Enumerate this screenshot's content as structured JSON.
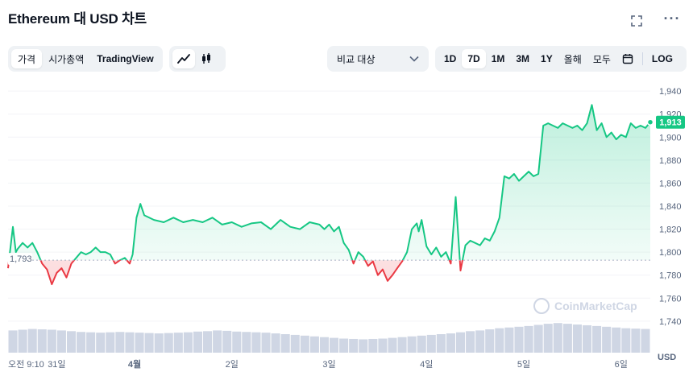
{
  "header": {
    "title": "Ethereum 대 USD 차트"
  },
  "tabs": {
    "type": [
      {
        "label": "가격",
        "active": true
      },
      {
        "label": "시가총액",
        "active": false
      },
      {
        "label": "TradingView",
        "active": false
      }
    ],
    "chart_style": [
      "line-chart-icon",
      "candlestick-icon"
    ],
    "compare_label": "비교 대상",
    "ranges": [
      {
        "label": "1D",
        "active": false
      },
      {
        "label": "7D",
        "active": true
      },
      {
        "label": "1M",
        "active": false
      },
      {
        "label": "3M",
        "active": false
      },
      {
        "label": "1Y",
        "active": false
      },
      {
        "label": "올해",
        "active": false
      },
      {
        "label": "모두",
        "active": false
      }
    ],
    "log_label": "LOG"
  },
  "colors": {
    "up": "#16c784",
    "down": "#ea3943",
    "volume": "#cfd6e4",
    "badge": "#16c784"
  },
  "watermark": "CoinMarketCap",
  "chart_data": {
    "type": "line",
    "title": "",
    "ylabel": "USD",
    "ylim": [
      1735,
      1945
    ],
    "yticks": [
      1740,
      1760,
      1780,
      1800,
      1820,
      1840,
      1860,
      1880,
      1900,
      1920,
      1940
    ],
    "yticks_labels": [
      "1,740",
      "1,760",
      "1,780",
      "1,800",
      "1,820",
      "1,840",
      "1,860",
      "1,880",
      "1,900",
      "1,920",
      "1,940"
    ],
    "xticks": [
      {
        "t": 0.0,
        "label": "오전 9:10",
        "bold": false
      },
      {
        "t": 0.5,
        "label": "31일",
        "bold": false
      },
      {
        "t": 1.3,
        "label": "4월",
        "bold": true
      },
      {
        "t": 2.3,
        "label": "2일",
        "bold": false
      },
      {
        "t": 3.3,
        "label": "3일",
        "bold": false
      },
      {
        "t": 4.3,
        "label": "4일",
        "bold": false
      },
      {
        "t": 5.3,
        "label": "5일",
        "bold": false
      },
      {
        "t": 6.3,
        "label": "6일",
        "bold": false
      }
    ],
    "baseline": 1793,
    "baseline_label": "1,793",
    "current": 1913,
    "current_label": "1,913",
    "series": [
      {
        "x": [
          0.0,
          0.05,
          0.08,
          0.1,
          0.15,
          0.2,
          0.25,
          0.3,
          0.35,
          0.4,
          0.45,
          0.5,
          0.55,
          0.6,
          0.65,
          0.7,
          0.75,
          0.8,
          0.85,
          0.9,
          0.95,
          1.0,
          1.05,
          1.1,
          1.15,
          1.2,
          1.25,
          1.28,
          1.32,
          1.36,
          1.4,
          1.5,
          1.6,
          1.7,
          1.8,
          1.9,
          2.0,
          2.1,
          2.2,
          2.3,
          2.4,
          2.5,
          2.6,
          2.7,
          2.8,
          2.9,
          3.0,
          3.1,
          3.2,
          3.25,
          3.3,
          3.35,
          3.4,
          3.45,
          3.5,
          3.55,
          3.6,
          3.65,
          3.7,
          3.75,
          3.8,
          3.85,
          3.9,
          3.95,
          4.0,
          4.05,
          4.1,
          4.15,
          4.2,
          4.22,
          4.25,
          4.3,
          4.35,
          4.4,
          4.45,
          4.5,
          4.55,
          4.6,
          4.65,
          4.7,
          4.75,
          4.8,
          4.85,
          4.9,
          4.95,
          5.0,
          5.05,
          5.1,
          5.15,
          5.2,
          5.25,
          5.3,
          5.35,
          5.4,
          5.45,
          5.5,
          5.55,
          5.6,
          5.65,
          5.7,
          5.75,
          5.8,
          5.85,
          5.9,
          5.95,
          6.0,
          6.05,
          6.1,
          6.15,
          6.2,
          6.25,
          6.3,
          6.35,
          6.4,
          6.45,
          6.5,
          6.55,
          6.6
        ],
        "y": [
          1786,
          1822,
          1800,
          1803,
          1808,
          1804,
          1808,
          1800,
          1790,
          1785,
          1772,
          1782,
          1786,
          1778,
          1790,
          1795,
          1800,
          1798,
          1800,
          1804,
          1800,
          1800,
          1798,
          1790,
          1793,
          1795,
          1790,
          1798,
          1830,
          1842,
          1832,
          1828,
          1826,
          1830,
          1826,
          1828,
          1826,
          1830,
          1824,
          1826,
          1822,
          1825,
          1826,
          1820,
          1828,
          1822,
          1820,
          1826,
          1824,
          1820,
          1824,
          1818,
          1822,
          1808,
          1802,
          1790,
          1800,
          1796,
          1788,
          1792,
          1780,
          1785,
          1775,
          1780,
          1786,
          1792,
          1800,
          1820,
          1825,
          1818,
          1828,
          1805,
          1798,
          1804,
          1796,
          1800,
          1790,
          1848,
          1784,
          1806,
          1810,
          1808,
          1806,
          1812,
          1810,
          1818,
          1830,
          1866,
          1864,
          1868,
          1862,
          1866,
          1870,
          1866,
          1868,
          1910,
          1912,
          1910,
          1908,
          1912,
          1910,
          1908,
          1910,
          1906,
          1912,
          1928,
          1906,
          1912,
          1900,
          1904,
          1898,
          1902,
          1900,
          1912,
          1908,
          1910,
          1908,
          1913
        ]
      }
    ],
    "volume": [
      0.6,
      0.62,
      0.64,
      0.63,
      0.62,
      0.6,
      0.58,
      0.56,
      0.55,
      0.54,
      0.55,
      0.56,
      0.55,
      0.54,
      0.53,
      0.52,
      0.53,
      0.54,
      0.55,
      0.57,
      0.58,
      0.6,
      0.59,
      0.57,
      0.56,
      0.55,
      0.54,
      0.52,
      0.5,
      0.48,
      0.46,
      0.44,
      0.42,
      0.4,
      0.38,
      0.37,
      0.36,
      0.37,
      0.38,
      0.4,
      0.42,
      0.44,
      0.46,
      0.48,
      0.5,
      0.52,
      0.55,
      0.58,
      0.6,
      0.63,
      0.66,
      0.68,
      0.7,
      0.72,
      0.75,
      0.78,
      0.8,
      0.78,
      0.76,
      0.74,
      0.72,
      0.7,
      0.68,
      0.66,
      0.65,
      0.64
    ]
  }
}
